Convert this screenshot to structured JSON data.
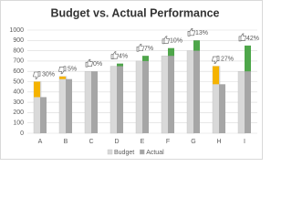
{
  "chart_data": {
    "type": "bar",
    "title": "Budget vs. Actual Performance",
    "categories": [
      "A",
      "B",
      "C",
      "D",
      "E",
      "F",
      "G",
      "H",
      "I"
    ],
    "series": [
      {
        "name": "Budget",
        "color": "#d9d9d9",
        "values": [
          500,
          550,
          600,
          650,
          700,
          750,
          800,
          650,
          600
        ]
      },
      {
        "name": "Actual",
        "color": "#a6a6a6",
        "values": [
          350,
          525,
          600,
          675,
          750,
          825,
          900,
          475,
          850
        ]
      }
    ],
    "variance_labels": [
      "30%",
      "5%",
      "0%",
      "4%",
      "7%",
      "10%",
      "13%",
      "27%",
      "42%"
    ],
    "increase_color": "#4ea64a",
    "decrease_color": "#f5b300",
    "ylim": [
      0,
      1000
    ],
    "yticks": [
      0,
      100,
      200,
      300,
      400,
      500,
      600,
      700,
      800,
      900,
      1000
    ],
    "grid": true,
    "legend": "bottom"
  }
}
